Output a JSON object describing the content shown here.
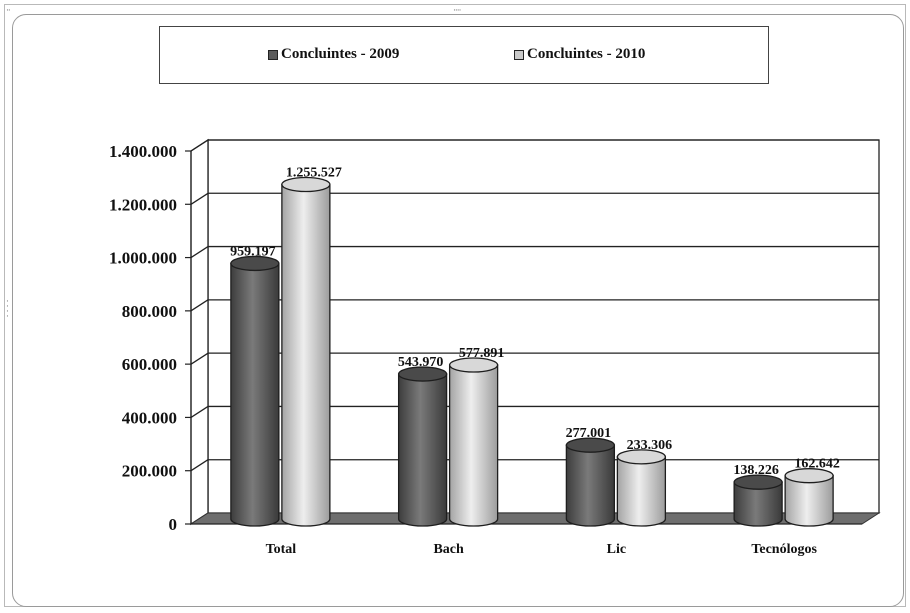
{
  "legend": {
    "items": [
      {
        "label": "Concluintes - 2009",
        "color": "#5a5a5a"
      },
      {
        "label": "Concluintes - 2010",
        "color": "#c9c9c9"
      }
    ]
  },
  "chart_data": {
    "type": "bar",
    "style": "3d-cylinder",
    "categories": [
      "Total",
      "Bach",
      "Lic",
      "Tecnólogos"
    ],
    "series": [
      {
        "name": "Concluintes - 2009",
        "values": [
          959197,
          543970,
          277001,
          138226
        ],
        "labels": [
          "959.197",
          "543.970",
          "277.001",
          "138.226"
        ],
        "color": "#5a5a5a"
      },
      {
        "name": "Concluintes - 2010",
        "values": [
          1255527,
          577891,
          233306,
          162642
        ],
        "labels": [
          "1.255.527",
          "577.891",
          "233.306",
          "162.642"
        ],
        "color": "#c9c9c9"
      }
    ],
    "yticks": [
      "0",
      "200.000",
      "400.000",
      "600.000",
      "800.000",
      "1.000.000",
      "1.200.000",
      "1.400.000"
    ],
    "ylim": [
      0,
      1400000
    ],
    "grid": true,
    "legend_position": "top"
  }
}
